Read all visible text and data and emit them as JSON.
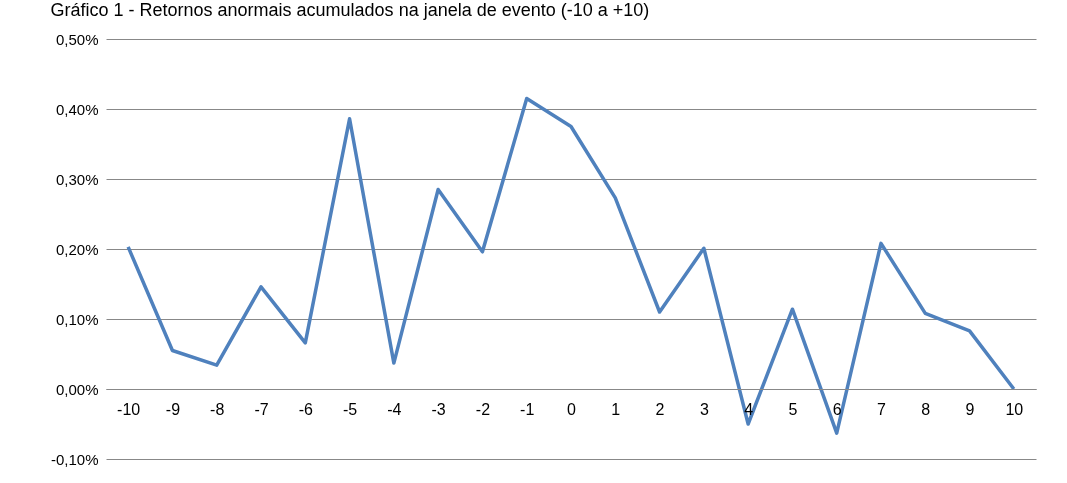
{
  "chart_data": {
    "type": "line",
    "title": "Gráfico 1 - Retornos anormais acumulados na janela de evento (-10 a +10)",
    "categories": [
      "-10",
      "-9",
      "-8",
      "-7",
      "-6",
      "-5",
      "-4",
      "-3",
      "-2",
      "-1",
      "0",
      "1",
      "2",
      "3",
      "4",
      "5",
      "6",
      "7",
      "8",
      "9",
      "10"
    ],
    "series": [
      {
        "color": "#4f81bd",
        "values": [
          0.203,
          0.055,
          0.034,
          0.146,
          0.066,
          0.386,
          0.037,
          0.285,
          0.196,
          0.415,
          0.375,
          0.273,
          0.11,
          0.201,
          -0.05,
          0.114,
          -0.063,
          0.208,
          0.108,
          0.083,
          0.0
        ]
      }
    ],
    "ylim": [
      -0.1,
      0.5
    ],
    "yticks": [
      {
        "value": -0.1,
        "label": "-0,10%"
      },
      {
        "value": 0.0,
        "label": "0,00%"
      },
      {
        "value": 0.1,
        "label": "0,10%"
      },
      {
        "value": 0.2,
        "label": "0,20%"
      },
      {
        "value": 0.3,
        "label": "0,30%"
      },
      {
        "value": 0.4,
        "label": "0,40%"
      },
      {
        "value": 0.5,
        "label": "0,50%"
      }
    ],
    "grid": "y",
    "marker": "none",
    "line_style": "solid"
  }
}
